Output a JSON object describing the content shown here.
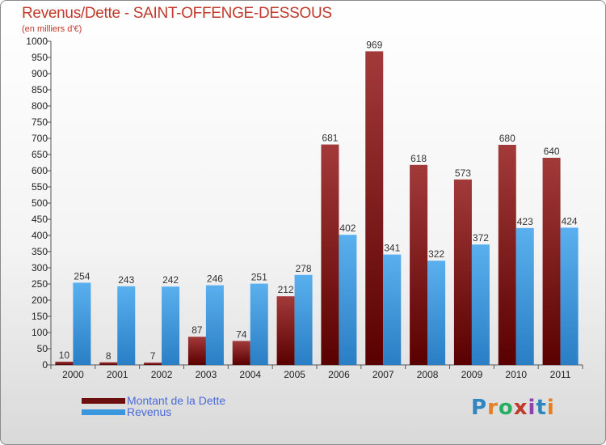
{
  "chart_data": {
    "type": "bar",
    "title": "Revenus/Dette - SAINT-OFFENGE-DESSOUS",
    "subtitle": "(en milliers d'€)",
    "categories": [
      "2000",
      "2001",
      "2002",
      "2003",
      "2004",
      "2005",
      "2006",
      "2007",
      "2008",
      "2009",
      "2010",
      "2011"
    ],
    "series": [
      {
        "name": "Montant de la Dette",
        "color": "#8b1a1a",
        "values": [
          10,
          8,
          7,
          87,
          74,
          212,
          681,
          969,
          618,
          573,
          680,
          640
        ]
      },
      {
        "name": "Revenus",
        "color": "#3b97dd",
        "values": [
          254,
          243,
          242,
          246,
          251,
          278,
          402,
          341,
          322,
          372,
          423,
          424
        ]
      }
    ],
    "ylim": [
      0,
      1000
    ],
    "yticks": [
      0,
      50,
      100,
      150,
      200,
      250,
      300,
      350,
      400,
      450,
      500,
      550,
      600,
      650,
      700,
      750,
      800,
      850,
      900,
      950,
      1000
    ],
    "legend_position": "bottom-left",
    "grid": false
  },
  "logo": {
    "text": "Proxiti"
  }
}
